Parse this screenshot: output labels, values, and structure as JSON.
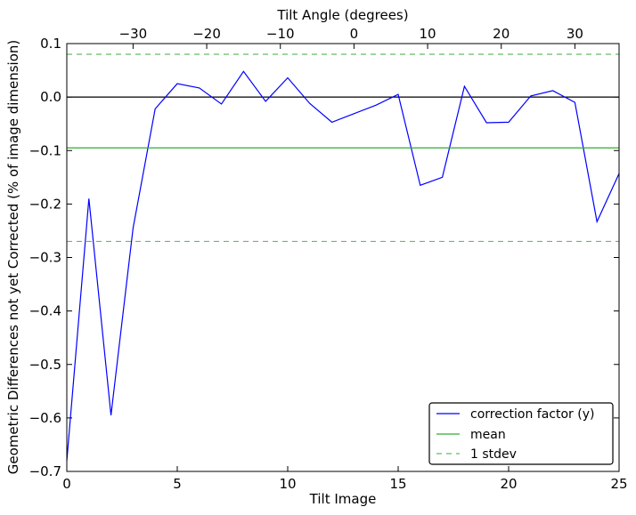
{
  "chart_data": {
    "type": "line",
    "xlabel": "Tilt Image",
    "ylabel": "Geometric Differences not yet Corrected (% of image dimension)",
    "top_xlabel": "Tilt Angle (degrees)",
    "xlim": [
      0,
      25
    ],
    "ylim": [
      -0.7,
      0.1
    ],
    "x_ticks": [
      0,
      5,
      10,
      15,
      20,
      25
    ],
    "x_tick_labels": [
      "0",
      "5",
      "10",
      "15",
      "20",
      "25"
    ],
    "y_ticks": [
      -0.7,
      -0.6,
      -0.5,
      -0.4,
      -0.3,
      -0.2,
      -0.1,
      0.0,
      0.1
    ],
    "y_tick_labels": [
      "−0.7",
      "−0.6",
      "−0.5",
      "−0.4",
      "−0.3",
      "−0.2",
      "−0.1",
      "0.0",
      "0.1"
    ],
    "top_axis": {
      "xlim": [
        -39,
        36
      ],
      "ticks": [
        -30,
        -20,
        -10,
        0,
        10,
        20,
        30
      ],
      "tick_labels": [
        "−30",
        "−20",
        "−10",
        "0",
        "10",
        "20",
        "30"
      ]
    },
    "series": [
      {
        "name": "correction factor (y)",
        "color": "#0000ff",
        "style": "solid",
        "x": [
          0,
          1,
          2,
          3,
          4,
          5,
          6,
          7,
          8,
          9,
          10,
          11,
          12,
          13,
          14,
          15,
          16,
          17,
          18,
          19,
          20,
          21,
          22,
          23,
          24,
          25
        ],
        "y": [
          -0.68,
          -0.19,
          -0.595,
          -0.245,
          -0.022,
          0.025,
          0.017,
          -0.013,
          0.048,
          -0.008,
          0.036,
          -0.012,
          -0.047,
          -0.031,
          -0.015,
          0.005,
          -0.165,
          -0.15,
          0.02,
          -0.048,
          -0.047,
          0.002,
          0.012,
          -0.01,
          -0.233,
          -0.143
        ]
      },
      {
        "name": "mean",
        "color": "#33aa33",
        "style": "solid",
        "x": [
          0,
          25
        ],
        "y": [
          -0.095,
          -0.095
        ]
      },
      {
        "name": "1 stdev",
        "color": "#66bb66",
        "style": "dashed",
        "x": [
          0,
          25
        ],
        "y": [
          0.08,
          0.08
        ]
      },
      {
        "name": "",
        "color": "#66bb66",
        "style": "dashed",
        "x": [
          0,
          25
        ],
        "y": [
          -0.27,
          -0.27
        ]
      }
    ],
    "reference_line": {
      "y": 0.0,
      "color": "#000000"
    },
    "legend": {
      "placement": "lower-right",
      "entries": [
        "correction factor (y)",
        "mean",
        "1 stdev"
      ]
    },
    "grid": false
  }
}
